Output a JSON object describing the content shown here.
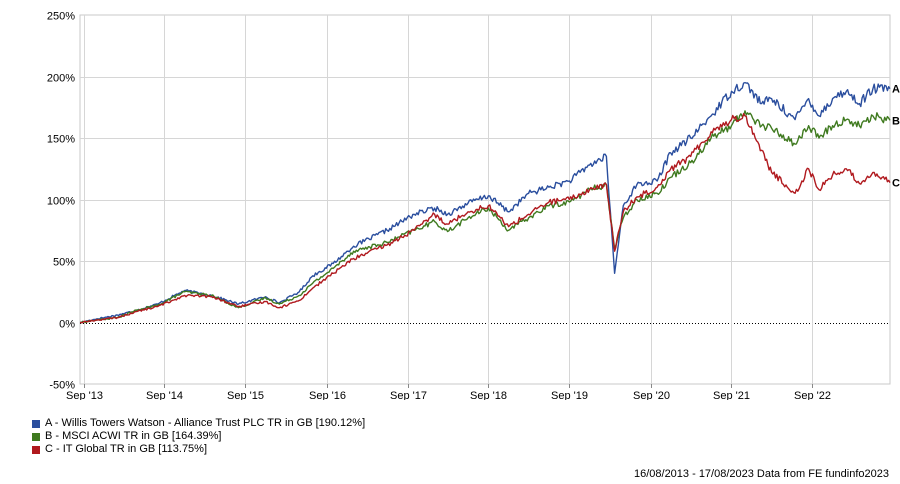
{
  "chart_data": {
    "type": "line",
    "title": "",
    "xlabel": "",
    "ylabel": "",
    "ylim": [
      -50,
      250
    ],
    "y_ticks": [
      -50,
      0,
      50,
      100,
      150,
      200,
      250
    ],
    "y_tick_labels": [
      "-50%",
      "0%",
      "50%",
      "100%",
      "150%",
      "200%",
      "250%"
    ],
    "x_range": [
      "2013-08-16",
      "2023-08-17"
    ],
    "x_ticks": [
      "2013-09-01",
      "2014-09-01",
      "2015-09-01",
      "2016-09-01",
      "2017-09-01",
      "2018-09-01",
      "2019-09-01",
      "2020-09-01",
      "2021-09-01",
      "2022-09-01"
    ],
    "x_tick_labels": [
      "Sep '13",
      "Sep '14",
      "Sep '15",
      "Sep '16",
      "Sep '17",
      "Sep '18",
      "Sep '19",
      "Sep '20",
      "Sep '21",
      "Sep '22"
    ],
    "grid": true,
    "zero_line": "dotted",
    "legend_placement": "bottom-left",
    "series": [
      {
        "name": "A - Willis Towers Watson - Alliance Trust PLC TR in GB [190.12%]",
        "end_label": "A",
        "color": "#2a4e9e",
        "points": [
          [
            "2013-08-16",
            0
          ],
          [
            "2013-11-01",
            3
          ],
          [
            "2014-02-01",
            6
          ],
          [
            "2014-05-01",
            10
          ],
          [
            "2014-08-01",
            15
          ],
          [
            "2014-12-01",
            26
          ],
          [
            "2015-04-01",
            22
          ],
          [
            "2015-08-01",
            15
          ],
          [
            "2015-12-01",
            21
          ],
          [
            "2016-02-01",
            16
          ],
          [
            "2016-05-01",
            25
          ],
          [
            "2016-07-01",
            38
          ],
          [
            "2016-10-01",
            48
          ],
          [
            "2017-01-01",
            62
          ],
          [
            "2017-06-01",
            75
          ],
          [
            "2017-10-01",
            88
          ],
          [
            "2018-01-01",
            93
          ],
          [
            "2018-03-01",
            88
          ],
          [
            "2018-06-01",
            97
          ],
          [
            "2018-09-01",
            103
          ],
          [
            "2018-12-01",
            90
          ],
          [
            "2019-03-01",
            105
          ],
          [
            "2019-06-01",
            110
          ],
          [
            "2019-09-01",
            115
          ],
          [
            "2019-12-01",
            128
          ],
          [
            "2020-02-15",
            135
          ],
          [
            "2020-03-23",
            40
          ],
          [
            "2020-05-01",
            95
          ],
          [
            "2020-07-01",
            112
          ],
          [
            "2020-10-01",
            115
          ],
          [
            "2020-12-01",
            138
          ],
          [
            "2021-03-01",
            150
          ],
          [
            "2021-06-01",
            168
          ],
          [
            "2021-09-01",
            188
          ],
          [
            "2021-11-01",
            195
          ],
          [
            "2022-01-15",
            178
          ],
          [
            "2022-03-01",
            182
          ],
          [
            "2022-06-15",
            165
          ],
          [
            "2022-08-15",
            182
          ],
          [
            "2022-10-01",
            168
          ],
          [
            "2022-12-01",
            182
          ],
          [
            "2023-02-01",
            188
          ],
          [
            "2023-04-01",
            178
          ],
          [
            "2023-06-01",
            190
          ],
          [
            "2023-08-17",
            190.12
          ]
        ]
      },
      {
        "name": "B - MSCI ACWI TR in GB [164.39%]",
        "end_label": "B",
        "color": "#3f7a1f",
        "points": [
          [
            "2013-08-16",
            0
          ],
          [
            "2013-11-01",
            2
          ],
          [
            "2014-02-01",
            4
          ],
          [
            "2014-05-01",
            10
          ],
          [
            "2014-08-01",
            14
          ],
          [
            "2014-12-01",
            25
          ],
          [
            "2015-04-01",
            22
          ],
          [
            "2015-08-01",
            12
          ],
          [
            "2015-12-01",
            20
          ],
          [
            "2016-02-01",
            15
          ],
          [
            "2016-05-01",
            22
          ],
          [
            "2016-07-01",
            32
          ],
          [
            "2016-10-01",
            44
          ],
          [
            "2017-01-01",
            58
          ],
          [
            "2017-06-01",
            65
          ],
          [
            "2017-10-01",
            75
          ],
          [
            "2018-01-01",
            82
          ],
          [
            "2018-03-01",
            74
          ],
          [
            "2018-06-01",
            85
          ],
          [
            "2018-09-01",
            93
          ],
          [
            "2018-12-01",
            75
          ],
          [
            "2019-03-01",
            85
          ],
          [
            "2019-06-01",
            95
          ],
          [
            "2019-09-01",
            98
          ],
          [
            "2019-12-01",
            108
          ],
          [
            "2020-02-15",
            112
          ],
          [
            "2020-03-23",
            60
          ],
          [
            "2020-05-01",
            85
          ],
          [
            "2020-07-01",
            100
          ],
          [
            "2020-10-01",
            105
          ],
          [
            "2020-12-01",
            118
          ],
          [
            "2021-03-01",
            130
          ],
          [
            "2021-06-01",
            150
          ],
          [
            "2021-09-01",
            160
          ],
          [
            "2021-11-01",
            172
          ],
          [
            "2022-01-15",
            160
          ],
          [
            "2022-03-01",
            158
          ],
          [
            "2022-06-15",
            145
          ],
          [
            "2022-08-15",
            160
          ],
          [
            "2022-10-01",
            150
          ],
          [
            "2022-12-01",
            160
          ],
          [
            "2023-02-01",
            165
          ],
          [
            "2023-04-01",
            160
          ],
          [
            "2023-06-01",
            168
          ],
          [
            "2023-08-17",
            164.39
          ]
        ]
      },
      {
        "name": "C - IT Global TR in GB [113.75%]",
        "end_label": "C",
        "color": "#b0191e",
        "points": [
          [
            "2013-08-16",
            0
          ],
          [
            "2013-11-01",
            2
          ],
          [
            "2014-02-01",
            4
          ],
          [
            "2014-05-01",
            9
          ],
          [
            "2014-08-01",
            13
          ],
          [
            "2014-12-01",
            22
          ],
          [
            "2015-04-01",
            21
          ],
          [
            "2015-08-01",
            13
          ],
          [
            "2015-12-01",
            17
          ],
          [
            "2016-02-01",
            12
          ],
          [
            "2016-05-01",
            18
          ],
          [
            "2016-07-01",
            28
          ],
          [
            "2016-10-01",
            40
          ],
          [
            "2017-01-01",
            52
          ],
          [
            "2017-06-01",
            63
          ],
          [
            "2017-10-01",
            75
          ],
          [
            "2018-01-01",
            88
          ],
          [
            "2018-03-01",
            80
          ],
          [
            "2018-06-01",
            90
          ],
          [
            "2018-09-01",
            95
          ],
          [
            "2018-12-01",
            78
          ],
          [
            "2019-03-01",
            88
          ],
          [
            "2019-06-01",
            98
          ],
          [
            "2019-09-01",
            100
          ],
          [
            "2019-12-01",
            108
          ],
          [
            "2020-02-15",
            112
          ],
          [
            "2020-03-23",
            58
          ],
          [
            "2020-05-01",
            90
          ],
          [
            "2020-07-01",
            102
          ],
          [
            "2020-10-01",
            110
          ],
          [
            "2020-12-01",
            125
          ],
          [
            "2021-03-01",
            135
          ],
          [
            "2021-06-01",
            155
          ],
          [
            "2021-09-01",
            165
          ],
          [
            "2021-11-01",
            168
          ],
          [
            "2022-01-15",
            140
          ],
          [
            "2022-03-01",
            122
          ],
          [
            "2022-06-15",
            105
          ],
          [
            "2022-08-15",
            125
          ],
          [
            "2022-10-01",
            108
          ],
          [
            "2022-12-01",
            120
          ],
          [
            "2023-02-01",
            125
          ],
          [
            "2023-04-01",
            113
          ],
          [
            "2023-06-01",
            122
          ],
          [
            "2023-08-17",
            113.75
          ]
        ]
      }
    ]
  },
  "footer": "16/08/2013 - 17/08/2023 Data from FE fundinfo2023"
}
